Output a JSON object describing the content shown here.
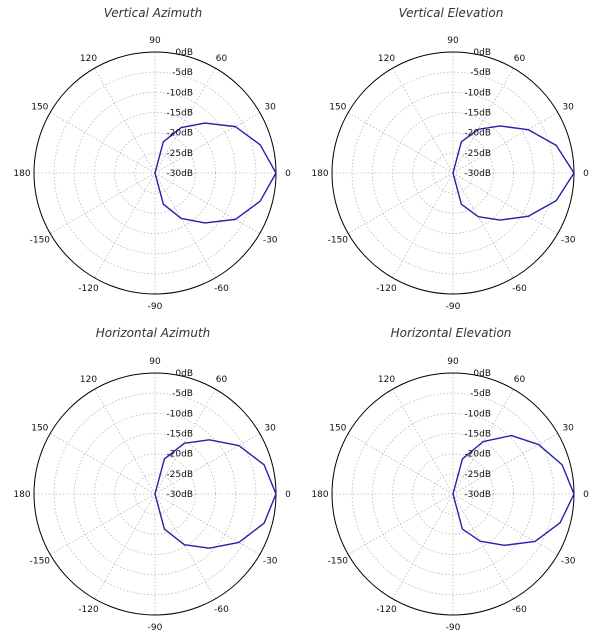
{
  "colors": {
    "pattern": "#2222aa",
    "outline": "#000000",
    "grid": "#b8b8b8"
  },
  "chart_data": [
    {
      "type": "polar-line",
      "title": "Vertical Azimuth",
      "angle_ticks": [
        "90",
        "60",
        "30",
        "0",
        "-30",
        "-60",
        "-90",
        "-120",
        "-150",
        "180",
        "150",
        "120"
      ],
      "angle_tick_values": [
        90,
        60,
        30,
        0,
        -30,
        -60,
        -90,
        -120,
        -150,
        180,
        150,
        120
      ],
      "radial_ticks": [
        "0dB",
        "-5dB",
        "-10dB",
        "-15dB",
        "-20dB",
        "-25dB",
        "-30dB"
      ],
      "rlim": [
        -30,
        0
      ],
      "grid": true,
      "series": [
        {
          "theta": [
            -90,
            -75,
            -60,
            -45,
            -30,
            -15,
            0,
            15,
            30,
            45,
            60,
            75,
            90
          ],
          "r": [
            -30,
            -22,
            -17,
            -12.5,
            -7,
            -3,
            0,
            -3,
            -7,
            -12.5,
            -17,
            -22,
            -30
          ]
        }
      ]
    },
    {
      "type": "polar-line",
      "title": "Vertical Elevation",
      "angle_ticks": [
        "90",
        "60",
        "30",
        "0",
        "-30",
        "-60",
        "-90",
        "-120",
        "-150",
        "180",
        "150",
        "120"
      ],
      "angle_tick_values": [
        90,
        60,
        30,
        0,
        -30,
        -60,
        -90,
        -120,
        -150,
        180,
        150,
        120
      ],
      "radial_ticks": [
        "0dB",
        "-5dB",
        "-10dB",
        "-15dB",
        "-20dB",
        "-25dB",
        "-30dB"
      ],
      "rlim": [
        -30,
        0
      ],
      "grid": true,
      "series": [
        {
          "theta": [
            -90,
            -75,
            -60,
            -45,
            -30,
            -15,
            0,
            15,
            30,
            45,
            60,
            75,
            90
          ],
          "r": [
            -30,
            -22,
            -17.5,
            -13.5,
            -8.5,
            -3.5,
            0,
            -3.5,
            -8.5,
            -13.5,
            -17.5,
            -22,
            -30
          ]
        }
      ]
    },
    {
      "type": "polar-line",
      "title": "Horizontal Azimuth",
      "angle_ticks": [
        "90",
        "60",
        "30",
        "0",
        "-30",
        "-60",
        "-90",
        "-120",
        "-150",
        "180",
        "150",
        "120"
      ],
      "angle_tick_values": [
        90,
        60,
        30,
        0,
        -30,
        -60,
        -90,
        -120,
        -150,
        180,
        150,
        120
      ],
      "radial_ticks": [
        "0dB",
        "-5dB",
        "-10dB",
        "-15dB",
        "-20dB",
        "-25dB",
        "-30dB"
      ],
      "rlim": [
        -30,
        0
      ],
      "grid": true,
      "series": [
        {
          "theta": [
            -90,
            -75,
            -60,
            -45,
            -30,
            -15,
            0,
            15,
            30,
            45,
            60,
            75,
            90
          ],
          "r": [
            -30,
            -21,
            -15.5,
            -11,
            -6,
            -2,
            0,
            -2,
            -6,
            -11,
            -15.5,
            -21,
            -30
          ]
        }
      ]
    },
    {
      "type": "polar-line",
      "title": "Horizontal Elevation",
      "angle_ticks": [
        "90",
        "60",
        "30",
        "0",
        "-30",
        "-60",
        "-90",
        "-120",
        "-150",
        "180",
        "150",
        "120"
      ],
      "angle_tick_values": [
        90,
        60,
        30,
        0,
        -30,
        -60,
        -90,
        -120,
        -150,
        180,
        150,
        120
      ],
      "radial_ticks": [
        "0dB",
        "-5dB",
        "-10dB",
        "-15dB",
        "-20dB",
        "-25dB",
        "-30dB"
      ],
      "rlim": [
        -30,
        0
      ],
      "grid": true,
      "series": [
        {
          "theta": [
            -90,
            -75,
            -60,
            -45,
            -30,
            -15,
            0,
            15,
            30,
            45,
            60,
            75,
            90
          ],
          "r": [
            -30,
            -21,
            -16.5,
            -12,
            -6.5,
            -2.5,
            0,
            -2,
            -5.5,
            -9.5,
            -15,
            -21,
            -30
          ]
        }
      ]
    }
  ]
}
